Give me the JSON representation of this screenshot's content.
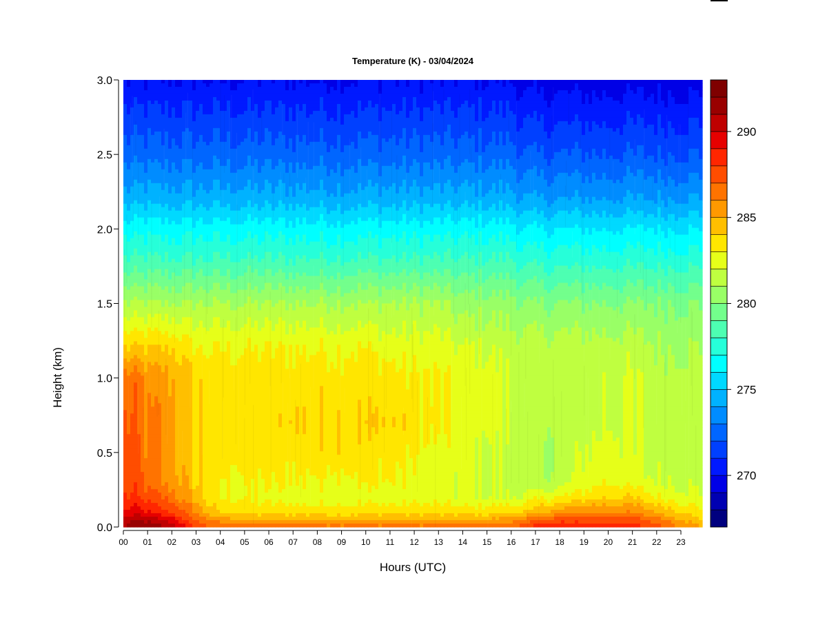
{
  "chart_data": {
    "type": "heatmap",
    "title": "Temperature (K) - 03/04/2024",
    "xlabel": "Hours (UTC)",
    "ylabel": "Height (km)",
    "xlim": [
      0,
      24
    ],
    "ylim": [
      0.0,
      3.0
    ],
    "x_ticks": [
      "00",
      "01",
      "02",
      "03",
      "04",
      "05",
      "06",
      "07",
      "08",
      "09",
      "10",
      "11",
      "12",
      "13",
      "14",
      "15",
      "16",
      "17",
      "18",
      "19",
      "20",
      "21",
      "22",
      "23"
    ],
    "y_ticks": [
      "0.0",
      "0.5",
      "1.0",
      "1.5",
      "2.0",
      "2.5",
      "3.0"
    ],
    "colorbar": {
      "range": [
        267,
        293
      ],
      "step": 1,
      "ticks": [
        "270",
        "275",
        "280",
        "285",
        "290"
      ],
      "colors": [
        "#00007F",
        "#0000B2",
        "#0000E6",
        "#0019FF",
        "#0040FF",
        "#0066FF",
        "#008CFF",
        "#00B2FF",
        "#00D9FF",
        "#00FFFF",
        "#26FFD9",
        "#4DFFB2",
        "#73FF8C",
        "#99FF66",
        "#BFFF40",
        "#E6FF19",
        "#FFE600",
        "#FFBF00",
        "#FF9900",
        "#FF7300",
        "#FF4D00",
        "#FF2600",
        "#E60000",
        "#BF0000",
        "#990000",
        "#7F0000"
      ]
    },
    "profile_hours": [
      0,
      0.5,
      1,
      1.5,
      2,
      2.5,
      3,
      3.5,
      4,
      5,
      6,
      7,
      8,
      9,
      10,
      11,
      12,
      13,
      14,
      15,
      16,
      16.5,
      17,
      18,
      19,
      20,
      21,
      22,
      23,
      24
    ],
    "profile_heights_km": [
      0,
      0.05,
      0.1,
      0.2,
      0.3,
      0.5,
      0.7,
      1.0,
      1.2,
      1.5,
      1.8,
      2.0,
      2.2,
      2.5,
      2.8,
      3.0
    ],
    "temperature_K": [
      [
        291,
        290,
        289,
        288,
        287.5,
        287.5,
        287,
        286.5,
        284,
        281,
        278,
        276.5,
        274.5,
        272.5,
        271,
        270
      ],
      [
        292,
        291,
        289.5,
        288,
        287.5,
        287.5,
        287,
        286.5,
        284,
        281,
        278,
        276.5,
        274.5,
        272.5,
        271,
        270
      ],
      [
        292,
        290.5,
        289,
        287.5,
        286.5,
        286,
        286,
        285.5,
        284,
        281,
        278,
        276.5,
        274.5,
        272.5,
        271,
        270
      ],
      [
        291.5,
        290,
        288.5,
        287,
        286,
        286,
        286,
        285.5,
        284,
        281,
        278,
        276.5,
        274.5,
        272.5,
        271,
        270
      ],
      [
        291,
        289.5,
        288,
        286.5,
        285.5,
        285.5,
        285.5,
        285,
        284,
        281,
        278,
        276.5,
        274.5,
        272.5,
        271,
        270
      ],
      [
        289.5,
        288,
        287,
        285.5,
        285,
        284.5,
        284.5,
        284.5,
        283.5,
        281,
        278,
        276.5,
        274.5,
        272.5,
        271,
        270
      ],
      [
        288,
        287,
        286,
        284.5,
        284,
        284,
        284,
        284,
        283,
        281,
        278,
        276.5,
        274.5,
        272.5,
        271,
        270
      ],
      [
        287,
        286,
        284.5,
        283.5,
        283.5,
        283.5,
        283.5,
        283.5,
        283,
        281,
        278,
        276.5,
        274.5,
        272.5,
        271,
        270
      ],
      [
        286.5,
        285.5,
        284,
        283,
        283,
        283.5,
        283.5,
        283.5,
        283,
        281,
        278,
        276.5,
        274.5,
        272.5,
        271,
        270
      ],
      [
        286.5,
        285,
        283.5,
        283,
        283,
        283.5,
        283.5,
        283.5,
        283,
        281,
        278,
        276.5,
        274.5,
        272.5,
        271,
        270
      ],
      [
        286.5,
        285,
        283.5,
        282.5,
        283,
        283.5,
        283.5,
        283.5,
        283,
        281,
        278,
        276.5,
        274.5,
        272.5,
        271,
        270
      ],
      [
        286.5,
        285,
        283.5,
        282.5,
        283,
        283.5,
        284,
        283.5,
        283,
        281,
        278,
        276.5,
        274.5,
        272.5,
        271,
        270
      ],
      [
        286.5,
        285,
        283.5,
        282.5,
        283,
        283.5,
        284,
        283.5,
        283,
        281,
        278,
        276.5,
        274.5,
        272.5,
        271,
        270
      ],
      [
        286.5,
        285,
        283.5,
        282.5,
        283,
        284,
        284,
        283.5,
        283,
        281,
        278,
        276.5,
        274.5,
        272.5,
        271,
        270
      ],
      [
        286.5,
        285,
        283.5,
        282.5,
        283,
        283.5,
        284,
        283.5,
        283,
        281,
        278,
        276.5,
        274.5,
        272.5,
        271,
        270
      ],
      [
        286.5,
        285,
        283.5,
        282.5,
        283,
        283.5,
        284,
        283.5,
        282.5,
        281,
        278,
        276.5,
        274.5,
        272.5,
        271,
        270
      ],
      [
        286.5,
        285,
        283.5,
        282.5,
        282.5,
        283,
        283.5,
        283,
        282.5,
        281,
        278,
        276.5,
        274.5,
        272.5,
        271,
        270
      ],
      [
        286.5,
        285,
        283.5,
        282.5,
        282.5,
        282.5,
        283,
        283,
        282.5,
        281,
        278,
        276.5,
        274.5,
        272.5,
        271,
        270
      ],
      [
        286.5,
        285,
        283.5,
        282,
        282,
        282.5,
        282.5,
        282.5,
        282,
        280.5,
        278,
        276.5,
        274.5,
        272.5,
        271,
        270
      ],
      [
        286.5,
        285,
        283.5,
        282,
        282,
        282,
        282.5,
        282.5,
        282,
        280.5,
        278,
        276.5,
        274.5,
        272.5,
        271,
        270
      ],
      [
        287,
        285.5,
        284,
        282,
        281.5,
        281.5,
        282,
        282,
        281.5,
        280.5,
        278,
        276.5,
        274.5,
        272.5,
        271,
        270
      ],
      [
        287.5,
        286,
        284,
        282,
        281.5,
        281.5,
        281.5,
        281.5,
        281.5,
        280,
        277.5,
        276,
        274,
        272,
        270.5,
        269.5
      ],
      [
        288.5,
        286.5,
        284.5,
        282.5,
        281,
        281,
        281.5,
        281.5,
        281.5,
        280,
        277.5,
        276,
        274,
        272,
        270.5,
        269.5
      ],
      [
        289,
        287.5,
        285.5,
        283,
        281.5,
        281,
        281.5,
        281.5,
        281.5,
        280,
        277.5,
        276,
        274,
        272,
        270.5,
        269.5
      ],
      [
        288.5,
        287.5,
        286,
        283.5,
        282.5,
        282,
        281.5,
        281.5,
        281.5,
        280,
        277.5,
        276,
        274,
        272,
        270.5,
        269.5
      ],
      [
        288.5,
        287.5,
        286,
        284,
        283,
        282.5,
        282,
        282,
        281.5,
        280,
        277.5,
        276,
        274,
        272,
        270.5,
        269.5
      ],
      [
        288.5,
        287.5,
        286,
        284,
        282.5,
        282,
        282,
        282,
        281.5,
        280,
        277.5,
        276,
        274,
        272,
        270.5,
        269.5
      ],
      [
        287.5,
        286.5,
        285,
        283,
        282,
        281.5,
        281.5,
        281.5,
        281,
        280,
        277.5,
        276,
        274,
        272,
        270.5,
        269.5
      ],
      [
        286,
        285,
        284,
        282.5,
        282,
        281.5,
        281.5,
        281.5,
        281,
        280,
        277.5,
        276,
        274,
        272,
        270.5,
        269.5
      ],
      [
        285,
        284,
        283,
        282,
        281.5,
        281.5,
        281.5,
        281.5,
        281,
        280,
        277.5,
        276,
        274,
        272,
        270.5,
        269.5
      ]
    ]
  }
}
